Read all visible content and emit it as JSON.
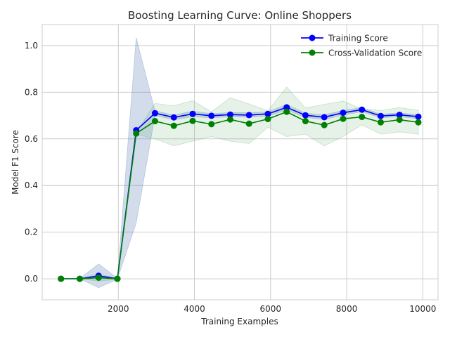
{
  "chart_data": {
    "type": "line",
    "title": "Boosting Learning Curve: Online Shoppers",
    "xlabel": "Training Examples",
    "ylabel": "Model F1 Score",
    "xlim": [
      0,
      10400
    ],
    "ylim": [
      -0.09,
      1.09
    ],
    "xticks": [
      2000,
      4000,
      6000,
      8000,
      10000
    ],
    "yticks": [
      0.0,
      0.2,
      0.4,
      0.6,
      0.8,
      1.0
    ],
    "grid": true,
    "legend_position": "top-right",
    "x": [
      494,
      988,
      1482,
      1976,
      2470,
      2964,
      3459,
      3953,
      4447,
      4941,
      5435,
      5929,
      6423,
      6917,
      7411,
      7905,
      8400,
      8894,
      9388,
      9882
    ],
    "series": [
      {
        "name": "Training Score",
        "color": "#0000ff",
        "band_color": "#4c72b0",
        "values": [
          0.0,
          0.0,
          0.013,
          0.0,
          0.637,
          0.71,
          0.692,
          0.707,
          0.699,
          0.704,
          0.702,
          0.707,
          0.735,
          0.701,
          0.693,
          0.712,
          0.725,
          0.698,
          0.703,
          0.695
        ],
        "band_lower": [
          0.0,
          0.0,
          -0.038,
          -0.002,
          0.24,
          0.7,
          0.682,
          0.695,
          0.69,
          0.695,
          0.692,
          0.698,
          0.723,
          0.692,
          0.683,
          0.702,
          0.716,
          0.69,
          0.695,
          0.686
        ],
        "band_upper": [
          0.0,
          0.0,
          0.064,
          0.002,
          1.034,
          0.72,
          0.702,
          0.719,
          0.708,
          0.713,
          0.712,
          0.716,
          0.747,
          0.71,
          0.703,
          0.722,
          0.734,
          0.706,
          0.711,
          0.704
        ]
      },
      {
        "name": "Cross-Validation Score",
        "color": "#008000",
        "band_color": "#55a868",
        "values": [
          0.0,
          0.0,
          0.005,
          0.0,
          0.623,
          0.676,
          0.656,
          0.677,
          0.663,
          0.683,
          0.665,
          0.685,
          0.716,
          0.676,
          0.659,
          0.686,
          0.694,
          0.671,
          0.682,
          0.671
        ],
        "band_lower": [
          0.0,
          0.0,
          -0.01,
          -0.002,
          0.62,
          0.6,
          0.57,
          0.59,
          0.61,
          0.59,
          0.58,
          0.65,
          0.61,
          0.62,
          0.57,
          0.61,
          0.66,
          0.62,
          0.63,
          0.62
        ],
        "band_upper": [
          0.0,
          0.0,
          0.02,
          0.002,
          0.626,
          0.752,
          0.742,
          0.764,
          0.716,
          0.776,
          0.75,
          0.72,
          0.822,
          0.732,
          0.748,
          0.762,
          0.728,
          0.722,
          0.734,
          0.722
        ]
      }
    ]
  }
}
